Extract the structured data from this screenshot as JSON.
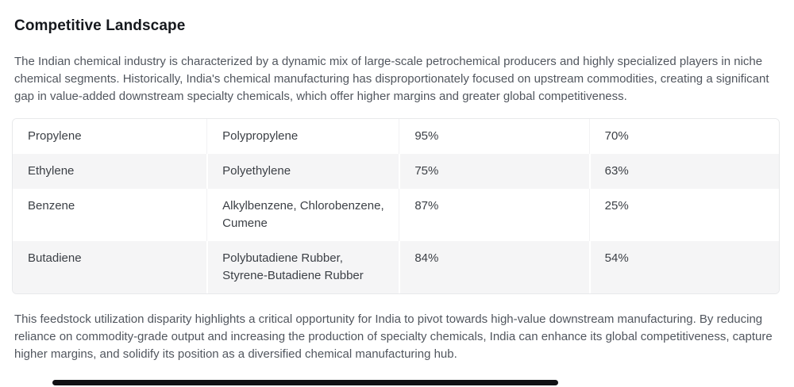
{
  "page": {
    "title": "Competitive Landscape",
    "intro": "The Indian chemical industry is characterized by a dynamic mix of large-scale petrochemical producers and highly specialized players in niche chemical segments. Historically, India's chemical manufacturing has disproportionately focused on upstream commodities, creating a significant gap in value-added downstream specialty chemicals, which offer higher margins and greater global competitiveness.",
    "conclusion": "This feedstock utilization disparity highlights a critical opportunity for India to pivot towards high-value downstream manufacturing. By reducing reliance on commodity-grade output and increasing the production of specialty chemicals, India can enhance its global competitiveness, capture higher margins, and solidify its position as a diversified chemical manufacturing hub."
  },
  "table": {
    "rows": [
      {
        "cells": [
          "Propylene",
          "Polypropylene",
          "95%",
          "70%"
        ]
      },
      {
        "cells": [
          "Ethylene",
          "Polyethylene",
          "75%",
          "63%"
        ]
      },
      {
        "cells": [
          "Benzene",
          "Alkylbenzene, Chlorobenzene, Cumene",
          "87%",
          "25%"
        ]
      },
      {
        "cells": [
          "Butadiene",
          "Polybutadiene Rubber, Styrene-Butadiene Rubber",
          "84%",
          "54%"
        ]
      }
    ]
  },
  "colors": {
    "heading_text": "#15181d",
    "body_text": "#51565e",
    "table_text": "#3c4046",
    "row_alt_background": "#f5f5f6",
    "table_border": "#e8e9eb",
    "scrollbar_thumb": "#101114"
  }
}
